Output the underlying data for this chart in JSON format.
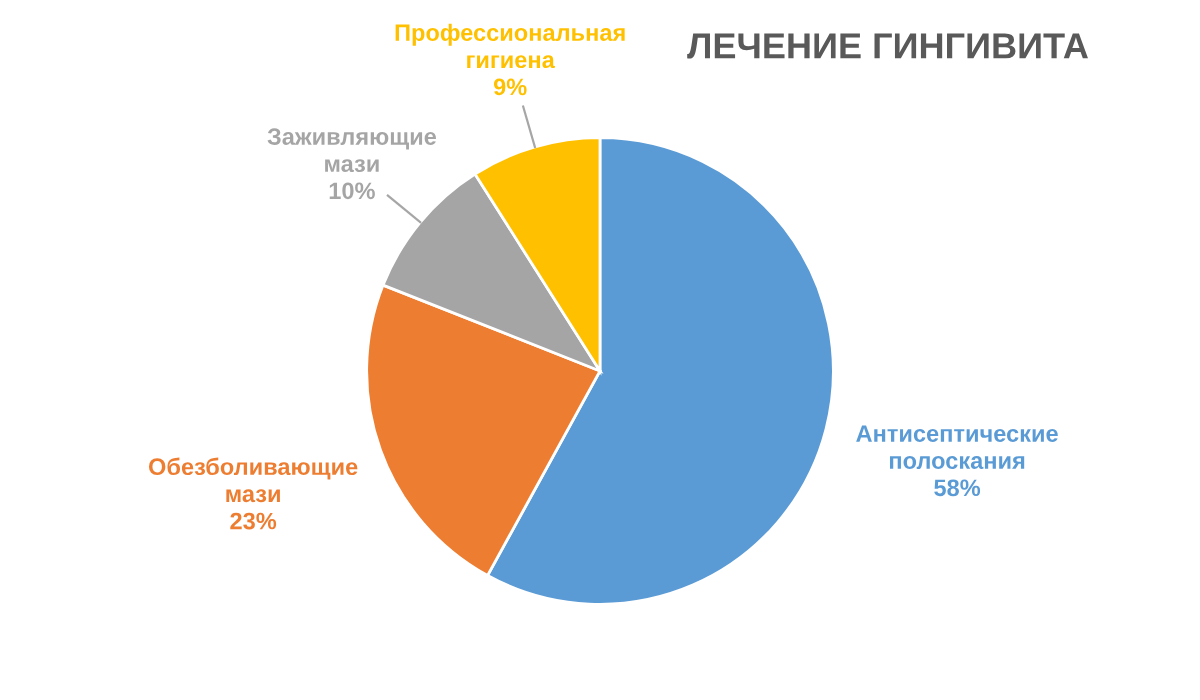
{
  "chart_data": {
    "type": "pie",
    "title": "ЛЕЧЕНИЕ ГИНГИВИТА",
    "categories": [
      "Антисептические\nполоскания",
      "Обезболивающие\nмази",
      "Заживляющие\nмази",
      "Профессиональная\nгигиена"
    ],
    "values": [
      58,
      23,
      10,
      9
    ],
    "value_labels": [
      "58%",
      "23%",
      "10%",
      "9%"
    ],
    "colors": [
      "#5b9bd5",
      "#ed7d31",
      "#a5a5a5",
      "#ffc000"
    ]
  }
}
